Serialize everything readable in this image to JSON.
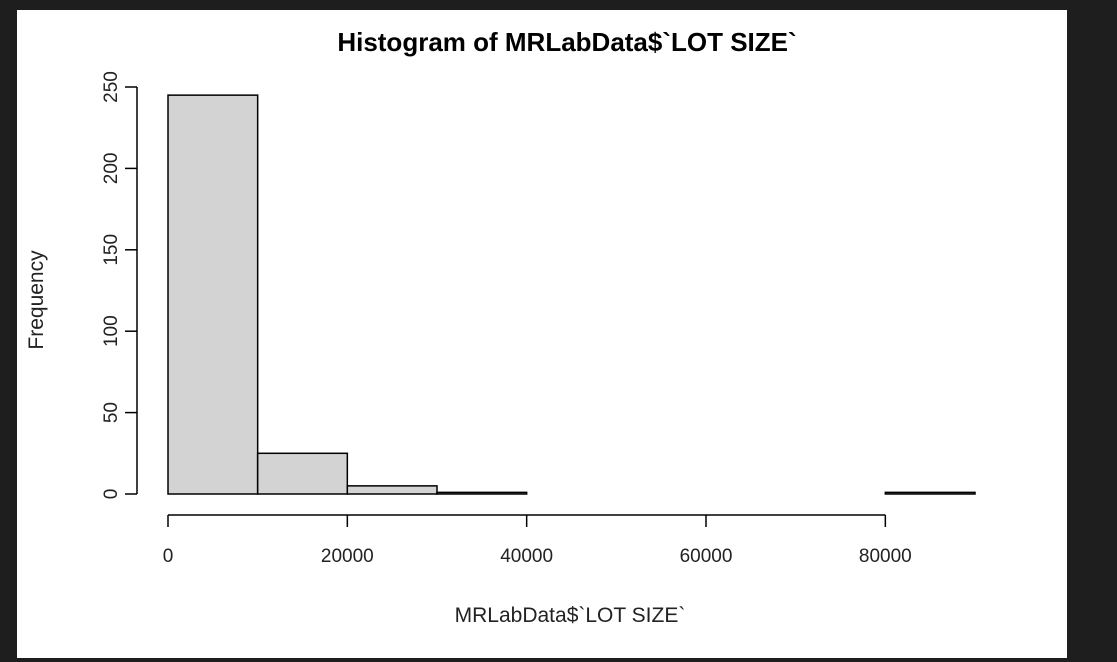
{
  "chart_data": {
    "type": "bar",
    "title": "Histogram of MRLabData$`LOT SIZE`",
    "xlabel": "MRLabData$`LOT SIZE`",
    "ylabel": "Frequency",
    "bins": [
      {
        "start": 0,
        "end": 10000,
        "count": 245
      },
      {
        "start": 10000,
        "end": 20000,
        "count": 25
      },
      {
        "start": 20000,
        "end": 30000,
        "count": 5
      },
      {
        "start": 30000,
        "end": 40000,
        "count": 1
      },
      {
        "start": 40000,
        "end": 50000,
        "count": 0
      },
      {
        "start": 50000,
        "end": 60000,
        "count": 0
      },
      {
        "start": 60000,
        "end": 70000,
        "count": 0
      },
      {
        "start": 70000,
        "end": 80000,
        "count": 0
      },
      {
        "start": 80000,
        "end": 90000,
        "count": 1
      }
    ],
    "xlim": [
      0,
      90000
    ],
    "ylim": [
      0,
      250
    ],
    "xticks": [
      0,
      20000,
      40000,
      60000,
      80000
    ],
    "yticks": [
      0,
      50,
      100,
      150,
      200,
      250
    ],
    "bar_color": "#d3d3d3",
    "border_color": "#000000",
    "grid": false,
    "legend": "none"
  }
}
